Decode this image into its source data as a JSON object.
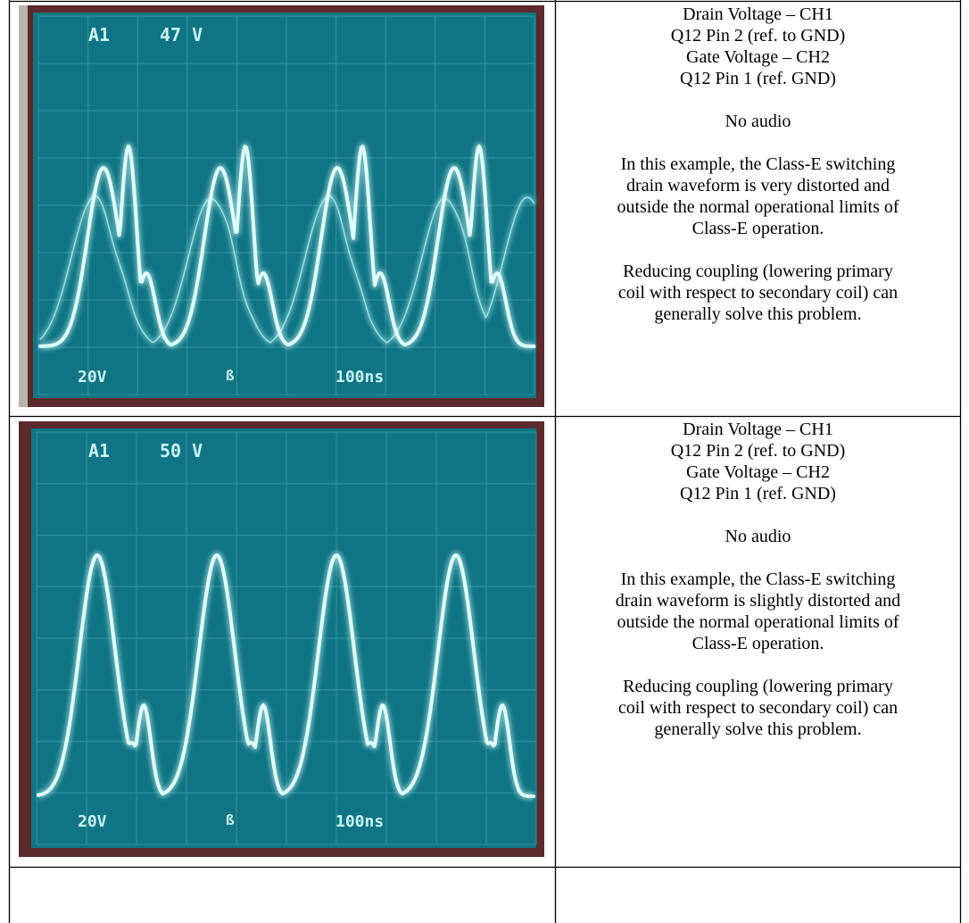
{
  "rows": [
    {
      "scope": {
        "header_ch": "A1",
        "header_val": "47 V",
        "volts_div": "20V",
        "time_div": "100ns"
      },
      "text": {
        "l1": "Drain Voltage – CH1",
        "l2": "Q12 Pin 2 (ref. to GND)",
        "l3": "Gate Voltage – CH2",
        "l4": "Q12 Pin 1 (ref. GND)",
        "audio": "No audio",
        "e1": "In this example, the Class-E switching",
        "e2": "drain waveform is very distorted and",
        "e3": "outside the normal operational limits of",
        "e4": "Class-E operation.",
        "f1": "Reducing coupling (lowering primary",
        "f2": "coil with respect to secondary coil) can",
        "f3": "generally solve this problem."
      }
    },
    {
      "scope": {
        "header_ch": "A1",
        "header_val": "50 V",
        "volts_div": "20V",
        "time_div": "100ns"
      },
      "text": {
        "l1": "Drain Voltage – CH1",
        "l2": "Q12 Pin 2 (ref. to GND)",
        "l3": "Gate Voltage – CH2",
        "l4": "Q12 Pin 1 (ref. GND)",
        "audio": "No audio",
        "e1": "In this example, the Class-E switching",
        "e2": "drain waveform is slightly distorted and",
        "e3": "outside the normal operational limits of",
        "e4": "Class-E operation.",
        "f1": "Reducing coupling (lowering primary",
        "f2": "coil with respect to secondary coil) can",
        "f3": "generally solve this problem."
      }
    }
  ],
  "colors": {
    "screen": "#0f7584",
    "bezel": "#5a2a2c",
    "trace": "#dfffff",
    "grid": "#3d9aa6"
  }
}
